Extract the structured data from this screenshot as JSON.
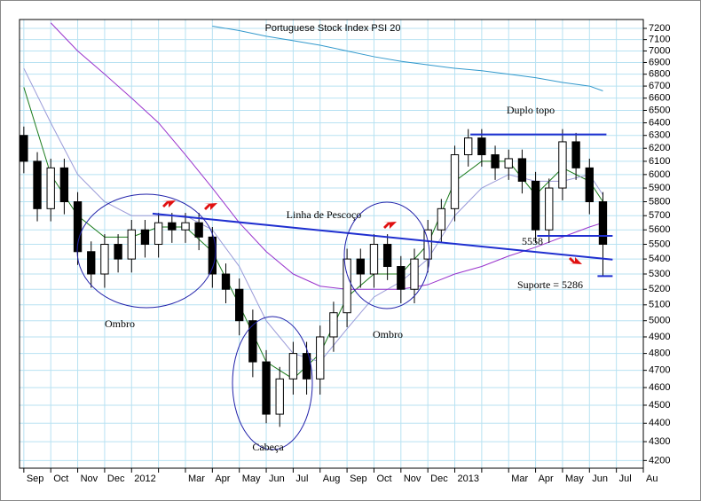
{
  "chart_data": {
    "type": "candlestick",
    "title": "Portuguese Stock Index PSI 20",
    "log_scale": true,
    "grid": true,
    "xlim": [
      -0.16,
      23.0
    ],
    "ylim": [
      4160,
      7280
    ],
    "xticks": [
      {
        "value": 0,
        "label": "Sep"
      },
      {
        "value": 1,
        "label": "Oct"
      },
      {
        "value": 2,
        "label": "Nov"
      },
      {
        "value": 3,
        "label": "Dec"
      },
      {
        "value": 4,
        "label": "2012"
      },
      {
        "value": 5,
        "label": null
      },
      {
        "value": 6,
        "label": "Mar"
      },
      {
        "value": 7,
        "label": "Apr"
      },
      {
        "value": 8,
        "label": "May"
      },
      {
        "value": 9,
        "label": "Jun"
      },
      {
        "value": 10,
        "label": "Jul"
      },
      {
        "value": 11,
        "label": "Aug"
      },
      {
        "value": 12,
        "label": "Sep"
      },
      {
        "value": 13,
        "label": "Oct"
      },
      {
        "value": 14,
        "label": "Nov"
      },
      {
        "value": 15,
        "label": "Dec"
      },
      {
        "value": 16,
        "label": "2013"
      },
      {
        "value": 17,
        "label": null
      },
      {
        "value": 18,
        "label": "Mar"
      },
      {
        "value": 19,
        "label": "Apr"
      },
      {
        "value": 20,
        "label": "May"
      },
      {
        "value": 21,
        "label": "Jun"
      },
      {
        "value": 22,
        "label": "Jul"
      },
      {
        "value": 23,
        "label": "Au"
      }
    ],
    "yticks": [
      4200,
      4300,
      4400,
      4500,
      4600,
      4700,
      4800,
      4900,
      5000,
      5100,
      5200,
      5300,
      5400,
      5500,
      5600,
      5700,
      5800,
      5900,
      6000,
      6100,
      6200,
      6300,
      6400,
      6500,
      6600,
      6700,
      6800,
      6900,
      7000,
      7100,
      7200
    ],
    "up_color": "#ffffff",
    "down_color": "#000000",
    "x": [
      0,
      0.5,
      1,
      1.5,
      2,
      2.5,
      3,
      3.5,
      4,
      4.5,
      5,
      5.5,
      6,
      6.5,
      7,
      7.5,
      8,
      8.5,
      9,
      9.5,
      10,
      10.5,
      11,
      11.5,
      12,
      12.5,
      13,
      13.5,
      14,
      14.5,
      15,
      15.5,
      16,
      16.5,
      17,
      17.5,
      18,
      18.5,
      19,
      19.5,
      20,
      20.5,
      21,
      21.5
    ],
    "open": [
      6300,
      6100,
      5750,
      6050,
      5800,
      5450,
      5300,
      5500,
      5400,
      5600,
      5500,
      5650,
      5600,
      5650,
      5550,
      5300,
      5200,
      5000,
      4750,
      4450,
      4650,
      4800,
      4650,
      4900,
      5050,
      5400,
      5300,
      5500,
      5350,
      5200,
      5400,
      5600,
      5750,
      6150,
      6280,
      6150,
      6050,
      6120,
      5950,
      5600,
      5900,
      6250,
      6050,
      5800
    ],
    "high": [
      6370,
      6170,
      6120,
      6120,
      5870,
      5520,
      5570,
      5570,
      5670,
      5670,
      5720,
      5720,
      5720,
      5720,
      5620,
      5370,
      5270,
      5070,
      4820,
      4720,
      4870,
      4870,
      4970,
      5120,
      5470,
      5470,
      5570,
      5570,
      5420,
      5470,
      5670,
      5820,
      6220,
      6350,
      6350,
      6220,
      6190,
      6190,
      6020,
      5970,
      6350,
      6320,
      6120,
      5870
    ],
    "low": [
      6010,
      5660,
      5660,
      5710,
      5360,
      5210,
      5210,
      5310,
      5310,
      5410,
      5410,
      5510,
      5510,
      5460,
      5210,
      5110,
      4910,
      4660,
      4400,
      4380,
      4560,
      4560,
      4560,
      4810,
      4960,
      5210,
      5210,
      5260,
      5110,
      5110,
      5310,
      5510,
      5660,
      6060,
      6060,
      5960,
      5960,
      5860,
      5510,
      5510,
      5810,
      5960,
      5710,
      5286
    ],
    "close": [
      6100,
      5750,
      6050,
      5800,
      5450,
      5300,
      5500,
      5400,
      5600,
      5500,
      5650,
      5600,
      5650,
      5550,
      5300,
      5200,
      5000,
      4750,
      4450,
      4650,
      4800,
      4650,
      4900,
      5050,
      5400,
      5300,
      5500,
      5350,
      5200,
      5400,
      5600,
      5750,
      6150,
      6280,
      6150,
      6050,
      6120,
      5950,
      5600,
      5900,
      6250,
      6050,
      5800,
      5500
    ],
    "ma_x": [
      0,
      1,
      2,
      3,
      4,
      5,
      6,
      7,
      8,
      9,
      10,
      11,
      12,
      13,
      14,
      15,
      16,
      17,
      18,
      19,
      20,
      21,
      21.5
    ],
    "moving_averages": [
      {
        "color": "#1a7a1a",
        "values": [
          6690,
          6000,
          5700,
          5550,
          5550,
          5620,
          5620,
          5450,
          5100,
          4750,
          4650,
          4800,
          5150,
          5300,
          5300,
          5500,
          5950,
          6100,
          6100,
          5850,
          6050,
          5950,
          5800
        ]
      },
      {
        "color": "#9a9ad8",
        "values": [
          6850,
          6400,
          6000,
          5800,
          5700,
          5700,
          5700,
          5600,
          5350,
          5000,
          4800,
          4750,
          4950,
          5150,
          5250,
          5400,
          5700,
          5900,
          6000,
          5950,
          5950,
          6000,
          5850
        ]
      },
      {
        "color": "#9933cc",
        "values": [
          null,
          7250,
          7000,
          6800,
          6600,
          6400,
          6150,
          5900,
          5650,
          5450,
          5300,
          5220,
          5200,
          5200,
          5200,
          5230,
          5300,
          5350,
          5420,
          5480,
          5550,
          5620,
          5650
        ]
      },
      {
        "color": "#3399cc",
        "values": [
          null,
          null,
          null,
          null,
          null,
          null,
          null,
          7220,
          7180,
          7130,
          7090,
          7050,
          7000,
          6950,
          6910,
          6880,
          6850,
          6830,
          6800,
          6770,
          6730,
          6700,
          6660
        ]
      }
    ],
    "trendlines": [
      {
        "x": [
          4.78,
          21.86
        ],
        "values": [
          5715,
          5396
        ]
      },
      {
        "x": [
          16.58,
          21.63
        ],
        "values": [
          6308,
          6308
        ]
      },
      {
        "x": [
          19.06,
          21.86
        ],
        "values": [
          5558,
          5558
        ]
      },
      {
        "x": [
          21.3,
          21.86
        ],
        "values": [
          5286,
          5286
        ]
      }
    ],
    "trendline_color": "#1f2fd0",
    "annotations": [
      "Duplo topo",
      "Linha de Pescoço",
      "Ombro",
      "Ombro",
      "Cabeça",
      "5558",
      "Suporte = 5286"
    ],
    "annotation_color": "#2233cc"
  }
}
